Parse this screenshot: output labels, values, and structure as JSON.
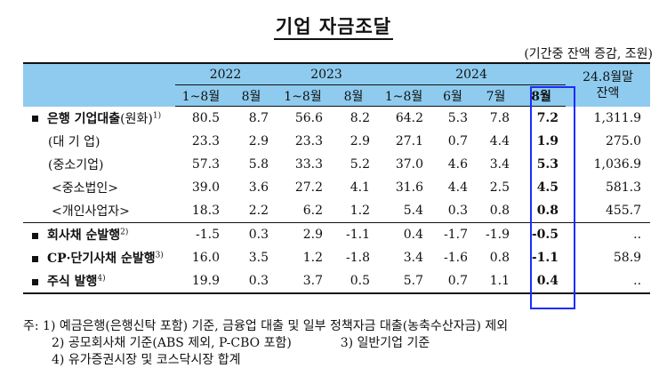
{
  "title": "기업 자금조달",
  "unit": "(기간중 잔액 증감, 조원)",
  "header": {
    "years": [
      "2022",
      "2023",
      "2024"
    ],
    "balance_label": "24.8월말\n잔액",
    "sub": [
      "1~8월",
      "8월",
      "1~8월",
      "8월",
      "1~8월",
      "6월",
      "7월",
      "8월"
    ]
  },
  "rows": [
    {
      "label": "은행 기업대출",
      "suffix": "(원화)",
      "note": "1)",
      "values": [
        "80.5",
        "8.7",
        "56.6",
        "8.2",
        "64.2",
        "5.3",
        "7.8",
        "7.2",
        "1,311.9"
      ]
    },
    {
      "label": "(대 기 업)",
      "suffix": "",
      "note": "",
      "values": [
        "23.3",
        "2.9",
        "23.3",
        "2.9",
        "27.1",
        "0.7",
        "4.4",
        "1.9",
        "275.0"
      ]
    },
    {
      "label": "(중소기업)",
      "suffix": "",
      "note": "",
      "values": [
        "57.3",
        "5.8",
        "33.3",
        "5.2",
        "37.0",
        "4.6",
        "3.4",
        "5.3",
        "1,036.9"
      ]
    },
    {
      "label": "<중소법인>",
      "suffix": "",
      "note": "",
      "values": [
        "39.0",
        "3.6",
        "27.2",
        "4.1",
        "31.6",
        "4.4",
        "2.5",
        "4.5",
        "581.3"
      ]
    },
    {
      "label": "<개인사업자>",
      "suffix": "",
      "note": "",
      "values": [
        "18.3",
        "2.2",
        "6.2",
        "1.2",
        "5.4",
        "0.3",
        "0.8",
        "0.8",
        "455.7"
      ]
    },
    {
      "label": "회사채 순발행",
      "suffix": "",
      "note": "2)",
      "values": [
        "-1.5",
        "0.3",
        "2.9",
        "-1.1",
        "0.4",
        "-1.7",
        "-1.9",
        "-0.5",
        ".."
      ]
    },
    {
      "label": "CP·단기사채 순발행",
      "suffix": "",
      "note": "3)",
      "values": [
        "16.0",
        "3.5",
        "1.2",
        "-1.8",
        "3.4",
        "-1.6",
        "0.8",
        "-1.1",
        "58.9"
      ]
    },
    {
      "label": "주식 발행",
      "suffix": "",
      "note": "4)",
      "values": [
        "19.9",
        "0.3",
        "3.7",
        "0.5",
        "5.7",
        "0.7",
        "1.1",
        "0.4",
        ".."
      ]
    }
  ],
  "notes": [
    "주: 1) 예금은행(은행신탁 포함) 기준, 금융업 대출 및 일부 정책자금 대출(농축수산자금) 제외",
    "2) 공모회사채 기준(ABS 제외, P-CBO 포함)",
    "3) 일반기업 기준",
    "4) 유가증권시장 및 코스닥시장 합계"
  ]
}
